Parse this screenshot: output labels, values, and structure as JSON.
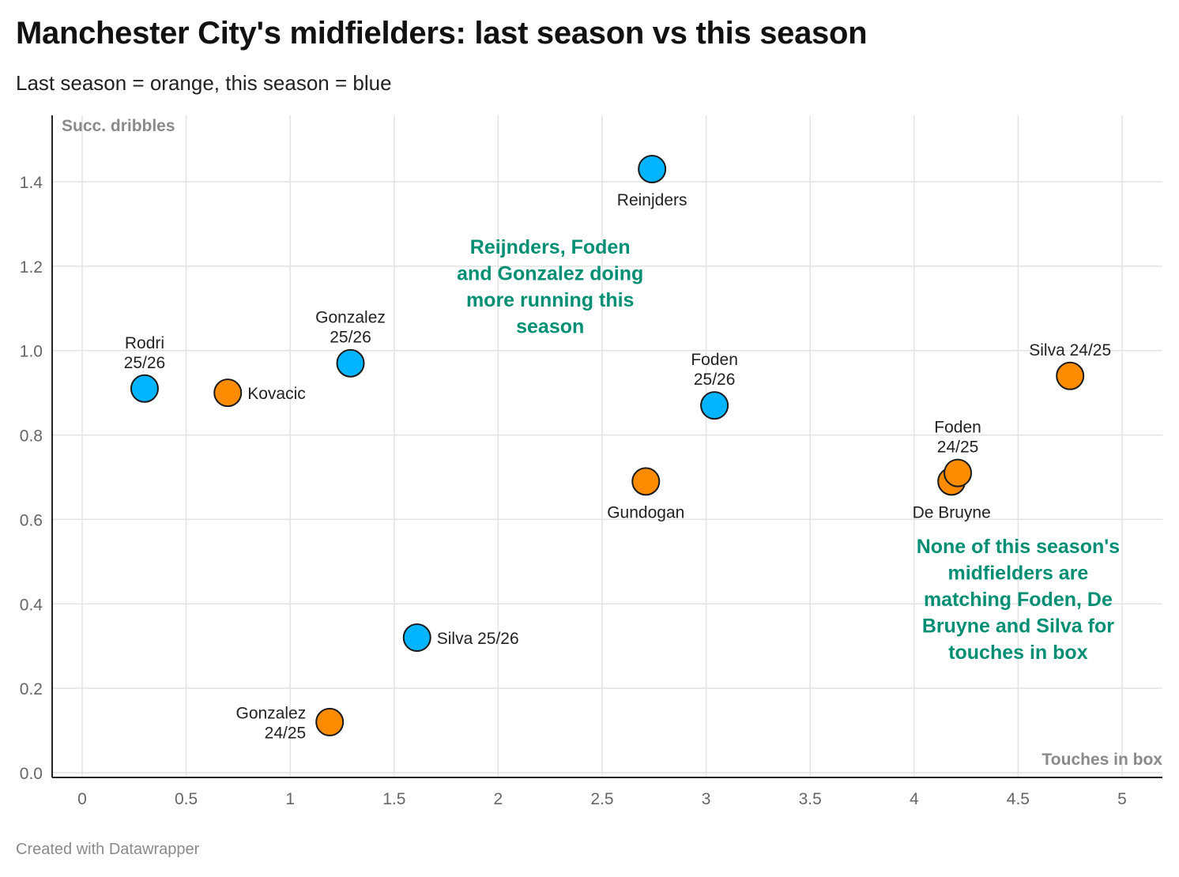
{
  "header": {
    "title": "Manchester City's midfielders: last season vs this season",
    "subtitle": "Last season = orange, this season = blue"
  },
  "footer": {
    "credit": "Created with Datawrapper"
  },
  "colors": {
    "last_season": "#ff8c00",
    "this_season": "#00b4ff",
    "annotation": "#008f74",
    "grid": "#e3e3e3"
  },
  "chart_data": {
    "type": "scatter",
    "xlabel": "Touches in box",
    "ylabel": "Succ. dribbles",
    "xlim": [
      -0.15,
      5.2
    ],
    "ylim": [
      0,
      1.5
    ],
    "x_ticks": [
      "0",
      "0.5",
      "1",
      "1.5",
      "2",
      "2.5",
      "3",
      "3.5",
      "4",
      "4.5",
      "5"
    ],
    "y_ticks": [
      "0.0",
      "0.2",
      "0.4",
      "0.6",
      "0.8",
      "1.0",
      "1.2",
      "1.4"
    ],
    "series": [
      {
        "name": "Last season",
        "color": "#ff8c00",
        "points": [
          {
            "name": "Kovacic",
            "label": [
              "Kovacic"
            ],
            "x": 0.7,
            "y": 0.9,
            "pos": "right"
          },
          {
            "name": "Gonzalez 24/25",
            "label": [
              "Gonzalez",
              "24/25"
            ],
            "x": 1.19,
            "y": 0.12,
            "pos": "left"
          },
          {
            "name": "Gundogan",
            "label": [
              "Gundogan"
            ],
            "x": 2.71,
            "y": 0.69,
            "pos": "below"
          },
          {
            "name": "De Bruyne",
            "label": [
              "De Bruyne"
            ],
            "x": 4.18,
            "y": 0.69,
            "pos": "below"
          },
          {
            "name": "Foden 24/25",
            "label": [
              "Foden",
              "24/25"
            ],
            "x": 4.21,
            "y": 0.71,
            "pos": "above"
          },
          {
            "name": "Silva 24/25",
            "label": [
              "Silva 24/25"
            ],
            "x": 4.75,
            "y": 0.94,
            "pos": "above"
          }
        ]
      },
      {
        "name": "This season",
        "color": "#00b4ff",
        "points": [
          {
            "name": "Rodri 25/26",
            "label": [
              "Rodri",
              "25/26"
            ],
            "x": 0.3,
            "y": 0.91,
            "pos": "above"
          },
          {
            "name": "Gonzalez 25/26",
            "label": [
              "Gonzalez",
              "25/26"
            ],
            "x": 1.29,
            "y": 0.97,
            "pos": "above"
          },
          {
            "name": "Silva 25/26",
            "label": [
              "Silva 25/26"
            ],
            "x": 1.61,
            "y": 0.32,
            "pos": "right"
          },
          {
            "name": "Reinjders",
            "label": [
              "Reinjders"
            ],
            "x": 2.74,
            "y": 1.43,
            "pos": "below"
          },
          {
            "name": "Foden 25/26",
            "label": [
              "Foden",
              "25/26"
            ],
            "x": 3.04,
            "y": 0.87,
            "pos": "above"
          }
        ]
      }
    ],
    "annotations": [
      {
        "lines": [
          "Reijnders, Foden",
          "and Gonzalez doing",
          "more running this",
          "season"
        ],
        "x": 2.25,
        "y": 1.23
      },
      {
        "lines": [
          "None of this season's",
          "midfielders are",
          "matching Foden, De",
          "Bruyne and Silva for",
          "touches in box"
        ],
        "x": 4.5,
        "y": 0.52
      }
    ]
  }
}
